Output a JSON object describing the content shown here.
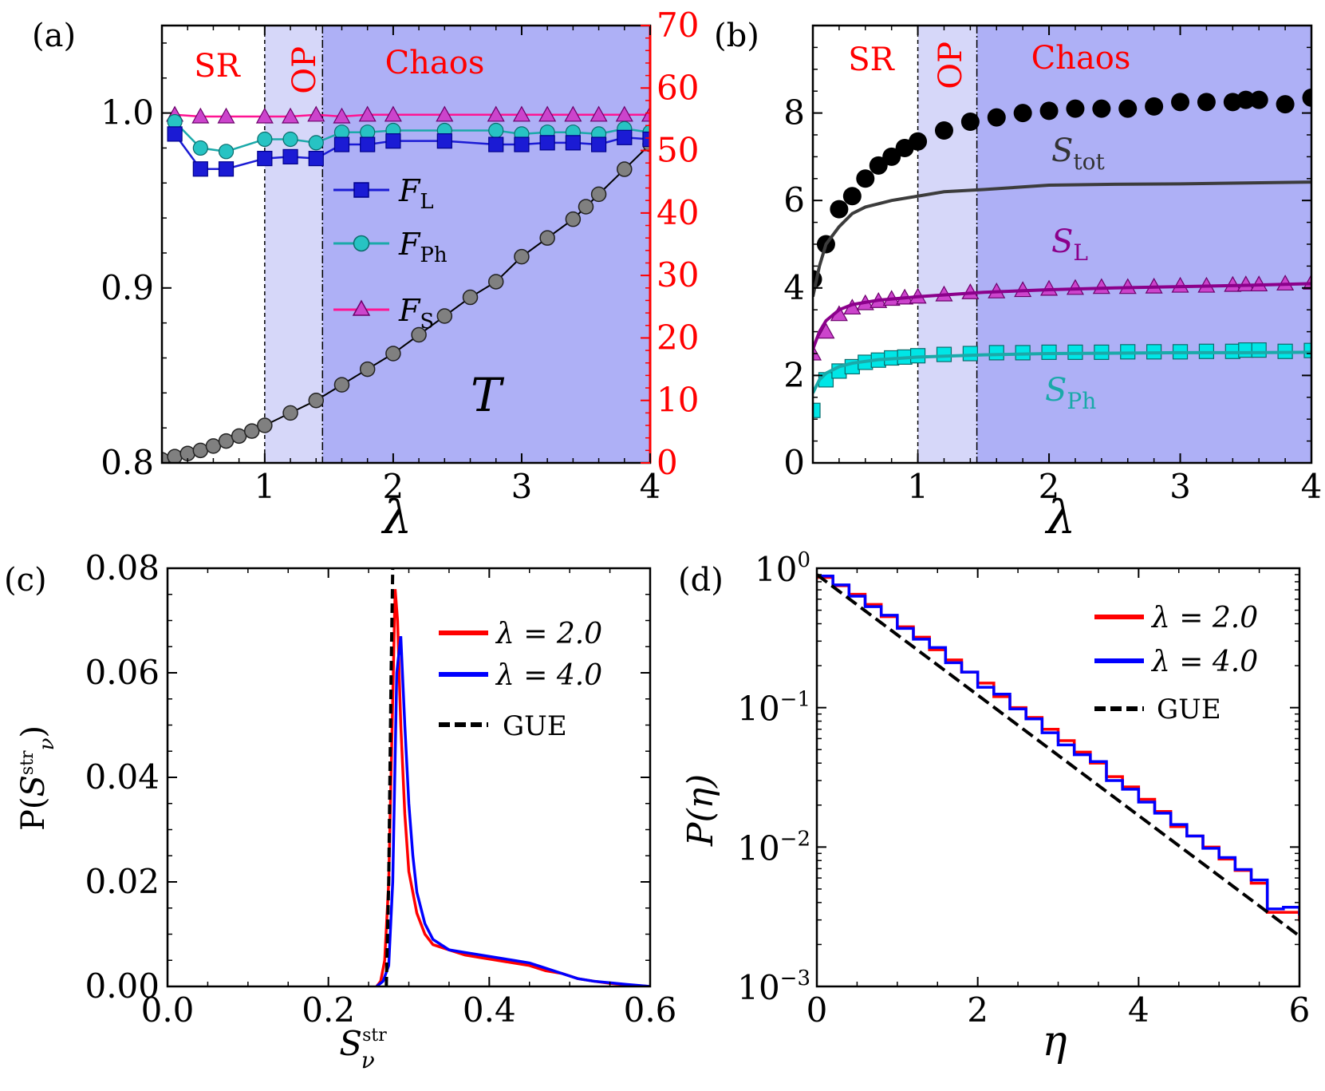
{
  "colors": {
    "chaos": "#aeb0f6",
    "op": "#d6d7f9",
    "red": "#ff0000",
    "blue": "#0000ff",
    "navy": "#1b1bd4",
    "teal": "#1aa9a9",
    "tealfill": "#27c3c3",
    "cyan": "#00e6e6",
    "pink": "#ff1493",
    "magenta": "#cc44cc",
    "purple": "#8b008b",
    "gray": "#555555",
    "darkgray": "#3c3c3c"
  },
  "chart_data": [
    {
      "id": "a",
      "type": "line",
      "panel_label": "(a)",
      "xlabel": "λ",
      "xlim": [
        0.2,
        4.0
      ],
      "ylim": [
        0.8,
        1.05
      ],
      "ylim_right": [
        0,
        70
      ],
      "xticks": [
        1,
        2,
        3,
        4
      ],
      "yticks": [
        0.8,
        0.9,
        1.0
      ],
      "yticklabels": [
        "0.8",
        "0.9",
        "1.0"
      ],
      "yticks_right": [
        0,
        10,
        20,
        30,
        40,
        50,
        60,
        70
      ],
      "regions": [
        {
          "label": "SR",
          "x0": 0.2,
          "x1": 1.0
        },
        {
          "label": "OP",
          "x0": 1.0,
          "x1": 1.45
        },
        {
          "label": "Chaos",
          "x0": 1.45,
          "x1": 4.0
        }
      ],
      "legend": [
        {
          "name": "F",
          "sub": "L"
        },
        {
          "name": "F",
          "sub": "Ph"
        },
        {
          "name": "F",
          "sub": "S"
        }
      ],
      "series": [
        {
          "name": "F_L",
          "marker": "square",
          "x": [
            0.3,
            0.5,
            0.7,
            1.0,
            1.2,
            1.4,
            1.6,
            1.8,
            2.0,
            2.4,
            2.8,
            3.0,
            3.2,
            3.4,
            3.6,
            3.8,
            4.0
          ],
          "values": [
            0.988,
            0.968,
            0.968,
            0.974,
            0.975,
            0.974,
            0.982,
            0.982,
            0.984,
            0.984,
            0.982,
            0.982,
            0.983,
            0.983,
            0.982,
            0.986,
            0.985
          ]
        },
        {
          "name": "F_Ph",
          "marker": "circle",
          "x": [
            0.3,
            0.5,
            0.7,
            1.0,
            1.2,
            1.4,
            1.6,
            1.8,
            2.0,
            2.4,
            2.8,
            3.0,
            3.2,
            3.4,
            3.6,
            3.8,
            4.0
          ],
          "values": [
            0.995,
            0.98,
            0.978,
            0.985,
            0.985,
            0.983,
            0.989,
            0.989,
            0.99,
            0.99,
            0.99,
            0.988,
            0.989,
            0.989,
            0.988,
            0.991,
            0.989
          ]
        },
        {
          "name": "F_S",
          "marker": "triangle",
          "x": [
            0.3,
            0.5,
            0.7,
            1.0,
            1.2,
            1.4,
            1.6,
            1.8,
            2.0,
            2.4,
            2.8,
            3.0,
            3.2,
            3.4,
            3.6,
            3.8,
            4.0
          ],
          "values": [
            0.999,
            0.998,
            0.998,
            0.998,
            0.998,
            0.999,
            0.998,
            0.999,
            0.999,
            0.999,
            0.999,
            0.999,
            0.999,
            0.999,
            0.999,
            0.999,
            0.999
          ]
        },
        {
          "name": "T",
          "marker": "circle",
          "axis": "right",
          "label": "T",
          "x": [
            0.2,
            0.3,
            0.4,
            0.5,
            0.6,
            0.7,
            0.8,
            0.9,
            1.0,
            1.2,
            1.4,
            1.6,
            1.8,
            2.0,
            2.2,
            2.4,
            2.6,
            2.8,
            3.0,
            3.2,
            3.4,
            3.5,
            3.6,
            3.8,
            4.0
          ],
          "values": [
            0.5,
            1.0,
            1.5,
            2.0,
            2.7,
            3.5,
            4.3,
            5.1,
            6.0,
            8.0,
            10.0,
            12.5,
            15.0,
            17.5,
            20.5,
            23.5,
            26.5,
            29.0,
            33.0,
            36.0,
            39.0,
            41.0,
            43.0,
            47.0,
            51.0
          ]
        }
      ]
    },
    {
      "id": "b",
      "type": "line",
      "panel_label": "(b)",
      "xlabel": "λ",
      "xlim": [
        0.2,
        4.0
      ],
      "ylim": [
        0,
        10
      ],
      "xticks": [
        1,
        2,
        3,
        4
      ],
      "yticks": [
        0,
        2,
        4,
        6,
        8
      ],
      "regions": [
        {
          "label": "SR",
          "x0": 0.2,
          "x1": 1.0
        },
        {
          "label": "OP",
          "x0": 1.0,
          "x1": 1.45
        },
        {
          "label": "Chaos",
          "x0": 1.45,
          "x1": 4.0
        }
      ],
      "annotations": [
        {
          "name": "S",
          "sub": "tot"
        },
        {
          "name": "S",
          "sub": "L"
        },
        {
          "name": "S",
          "sub": "Ph"
        }
      ],
      "series": [
        {
          "name": "S_tot points",
          "marker": "dot",
          "x": [
            0.2,
            0.3,
            0.4,
            0.5,
            0.6,
            0.7,
            0.8,
            0.9,
            1.0,
            1.2,
            1.4,
            1.6,
            1.8,
            2.0,
            2.2,
            2.4,
            2.6,
            2.8,
            3.0,
            3.2,
            3.4,
            3.5,
            3.6,
            3.8,
            4.0
          ],
          "values": [
            4.2,
            5.0,
            5.8,
            6.1,
            6.5,
            6.8,
            7.0,
            7.2,
            7.35,
            7.6,
            7.8,
            7.9,
            8.0,
            8.05,
            8.1,
            8.1,
            8.1,
            8.15,
            8.25,
            8.25,
            8.25,
            8.3,
            8.3,
            8.2,
            8.35
          ]
        },
        {
          "name": "S_tot curve",
          "marker": "none",
          "x": [
            0.2,
            0.25,
            0.3,
            0.4,
            0.5,
            0.6,
            0.8,
            1.0,
            1.2,
            1.5,
            2.0,
            2.5,
            3.0,
            3.5,
            4.0
          ],
          "values": [
            3.8,
            4.5,
            5.0,
            5.4,
            5.7,
            5.85,
            6.0,
            6.1,
            6.2,
            6.25,
            6.35,
            6.37,
            6.38,
            6.4,
            6.42
          ]
        },
        {
          "name": "S_L",
          "marker": "triangle",
          "x": [
            0.2,
            0.3,
            0.4,
            0.5,
            0.6,
            0.7,
            0.8,
            0.9,
            1.0,
            1.2,
            1.4,
            1.6,
            1.8,
            2.0,
            2.2,
            2.4,
            2.6,
            2.8,
            3.0,
            3.2,
            3.4,
            3.5,
            3.6,
            3.8,
            4.0
          ],
          "values": [
            2.5,
            3.0,
            3.4,
            3.55,
            3.65,
            3.7,
            3.75,
            3.78,
            3.8,
            3.85,
            3.9,
            3.92,
            3.95,
            3.98,
            4.0,
            4.02,
            4.02,
            4.03,
            4.05,
            4.05,
            4.07,
            4.08,
            4.08,
            4.1,
            4.12
          ]
        },
        {
          "name": "S_L curve",
          "marker": "none",
          "x": [
            0.2,
            0.25,
            0.3,
            0.4,
            0.5,
            0.7,
            1.0,
            1.5,
            2.0,
            2.5,
            3.0,
            3.5,
            4.0
          ],
          "values": [
            2.6,
            3.0,
            3.25,
            3.5,
            3.62,
            3.72,
            3.8,
            3.9,
            3.96,
            4.0,
            4.03,
            4.06,
            4.1
          ]
        },
        {
          "name": "S_Ph",
          "marker": "square",
          "x": [
            0.2,
            0.3,
            0.4,
            0.5,
            0.6,
            0.7,
            0.8,
            0.9,
            1.0,
            1.2,
            1.4,
            1.6,
            1.8,
            2.0,
            2.2,
            2.4,
            2.6,
            2.8,
            3.0,
            3.2,
            3.4,
            3.5,
            3.6,
            3.8,
            4.0
          ],
          "values": [
            1.2,
            1.9,
            2.1,
            2.2,
            2.3,
            2.35,
            2.4,
            2.42,
            2.45,
            2.48,
            2.5,
            2.52,
            2.52,
            2.53,
            2.53,
            2.53,
            2.54,
            2.54,
            2.54,
            2.55,
            2.55,
            2.58,
            2.58,
            2.55,
            2.57
          ]
        },
        {
          "name": "S_Ph curve",
          "marker": "none",
          "x": [
            0.2,
            0.25,
            0.3,
            0.4,
            0.5,
            0.7,
            1.0,
            1.5,
            2.0,
            2.5,
            3.0,
            3.5,
            4.0
          ],
          "values": [
            1.6,
            1.9,
            2.05,
            2.2,
            2.28,
            2.36,
            2.42,
            2.47,
            2.5,
            2.51,
            2.52,
            2.52,
            2.53
          ]
        }
      ]
    },
    {
      "id": "c",
      "type": "line",
      "panel_label": "(c)",
      "xlabel": "S_ν^str",
      "ylabel": "P(S_ν^str)",
      "xlim": [
        0.0,
        0.6
      ],
      "ylim": [
        0.0,
        0.08
      ],
      "xticks": [
        0.0,
        0.2,
        0.4,
        0.6
      ],
      "xticklabels": [
        "0.0",
        "0.2",
        "0.4",
        "0.6"
      ],
      "yticks": [
        0.0,
        0.02,
        0.04,
        0.06,
        0.08
      ],
      "yticklabels": [
        "0.00",
        "0.02",
        "0.04",
        "0.06",
        "0.08"
      ],
      "legend": [
        "λ = 2.0",
        "λ = 4.0",
        "GUE"
      ],
      "series": [
        {
          "name": "λ = 2.0",
          "x": [
            0.26,
            0.265,
            0.27,
            0.275,
            0.28,
            0.283,
            0.286,
            0.29,
            0.295,
            0.3,
            0.31,
            0.32,
            0.33,
            0.35,
            0.37,
            0.39,
            0.41,
            0.43,
            0.45,
            0.47,
            0.49,
            0.51,
            0.53,
            0.55,
            0.57,
            0.6
          ],
          "values": [
            0.0,
            0.001,
            0.005,
            0.02,
            0.055,
            0.076,
            0.07,
            0.05,
            0.033,
            0.022,
            0.014,
            0.01,
            0.008,
            0.007,
            0.006,
            0.0055,
            0.005,
            0.0045,
            0.004,
            0.003,
            0.0025,
            0.0015,
            0.001,
            0.0006,
            0.0003,
            0.0
          ]
        },
        {
          "name": "λ = 4.0",
          "x": [
            0.26,
            0.268,
            0.275,
            0.28,
            0.285,
            0.29,
            0.295,
            0.3,
            0.305,
            0.31,
            0.32,
            0.33,
            0.35,
            0.37,
            0.39,
            0.41,
            0.43,
            0.45,
            0.47,
            0.49,
            0.51,
            0.53,
            0.55,
            0.57,
            0.6
          ],
          "values": [
            0.0,
            0.001,
            0.004,
            0.02,
            0.06,
            0.067,
            0.05,
            0.035,
            0.025,
            0.018,
            0.012,
            0.009,
            0.007,
            0.0065,
            0.006,
            0.0055,
            0.005,
            0.0045,
            0.0035,
            0.0025,
            0.0015,
            0.001,
            0.0007,
            0.0004,
            0.0
          ]
        },
        {
          "name": "GUE",
          "style": "dashed",
          "x": [
            0.272,
            0.275,
            0.278,
            0.28
          ],
          "values": [
            0.0,
            0.02,
            0.06,
            0.08
          ]
        }
      ]
    },
    {
      "id": "d",
      "type": "line",
      "panel_label": "(d)",
      "xlabel": "η",
      "ylabel": "P(η)",
      "xlim": [
        0,
        6
      ],
      "ylim": [
        0.001,
        1.0
      ],
      "yscale": "log",
      "xticks": [
        0,
        2,
        4,
        6
      ],
      "ytick_exponents": [
        "0",
        "−1",
        "−2",
        "−3"
      ],
      "legend": [
        "λ = 2.0",
        "λ = 4.0",
        "GUE"
      ],
      "series": [
        {
          "name": "λ = 2.0",
          "style": "step",
          "x": [
            0.0,
            0.2,
            0.4,
            0.6,
            0.8,
            1.0,
            1.2,
            1.4,
            1.6,
            1.8,
            2.0,
            2.2,
            2.4,
            2.6,
            2.8,
            3.0,
            3.2,
            3.4,
            3.6,
            3.8,
            4.0,
            4.2,
            4.4,
            4.6,
            4.8,
            5.0,
            5.2,
            5.4,
            5.6,
            5.8,
            6.0
          ],
          "values": [
            0.86,
            0.75,
            0.65,
            0.55,
            0.45,
            0.38,
            0.32,
            0.26,
            0.22,
            0.18,
            0.15,
            0.12,
            0.1,
            0.085,
            0.07,
            0.058,
            0.048,
            0.04,
            0.032,
            0.027,
            0.022,
            0.018,
            0.014,
            0.012,
            0.01,
            0.0082,
            0.0068,
            0.0055,
            0.0034,
            0.0034,
            0.003
          ]
        },
        {
          "name": "λ = 4.0",
          "style": "step",
          "x": [
            0.0,
            0.2,
            0.4,
            0.6,
            0.8,
            1.0,
            1.2,
            1.4,
            1.6,
            1.8,
            2.0,
            2.2,
            2.4,
            2.6,
            2.8,
            3.0,
            3.2,
            3.4,
            3.6,
            3.8,
            4.0,
            4.2,
            4.4,
            4.6,
            4.8,
            5.0,
            5.2,
            5.4,
            5.6,
            5.8,
            6.0
          ],
          "values": [
            0.88,
            0.76,
            0.63,
            0.53,
            0.46,
            0.37,
            0.31,
            0.27,
            0.21,
            0.18,
            0.14,
            0.125,
            0.098,
            0.083,
            0.066,
            0.054,
            0.046,
            0.041,
            0.03,
            0.026,
            0.021,
            0.0175,
            0.0145,
            0.012,
            0.0098,
            0.0084,
            0.0069,
            0.0058,
            0.0036,
            0.0037,
            0.0033
          ]
        },
        {
          "name": "GUE",
          "style": "dashed",
          "x": [
            0,
            6
          ],
          "values": [
            0.9,
            0.0023
          ]
        }
      ]
    }
  ]
}
